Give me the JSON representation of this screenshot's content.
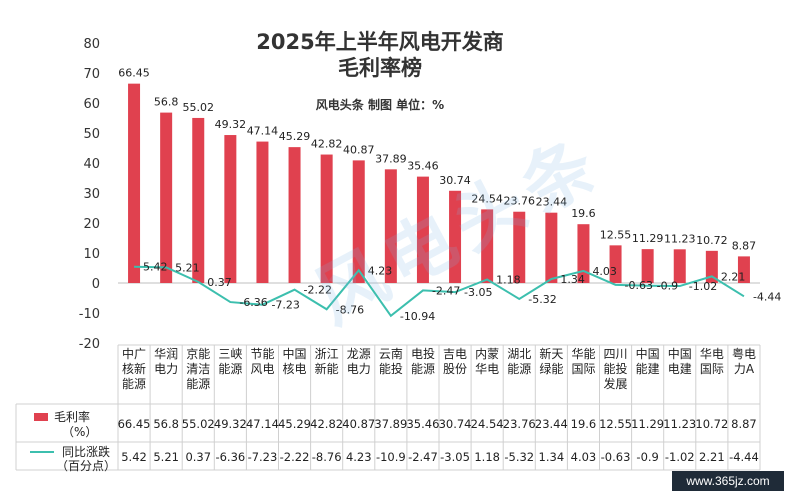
{
  "title_line1": "2025年上半年风电开发商",
  "title_line2": "毛利率榜",
  "subtitle": "风电头条 制图   单位：%",
  "watermark": "风电头条",
  "site": "www.365jz.com",
  "colors": {
    "bar": "#e0414f",
    "line": "#3cbfae"
  },
  "chart_data": {
    "type": "bar",
    "categories": [
      "中广\n核新\n能源",
      "华润\n电力",
      "京能\n清洁\n能源",
      "三峡\n能源",
      "节能\n风电",
      "中国\n核电",
      "浙江\n新能",
      "龙源\n电力",
      "云南\n能投",
      "电投\n能源",
      "吉电\n股份",
      "内蒙\n华电",
      "湖北\n能源",
      "新天\n绿能",
      "华能\n国际",
      "四川\n能投\n发展",
      "中国\n能建",
      "中国\n电建",
      "华电\n国际",
      "粤电\n力A"
    ],
    "series": [
      {
        "name": "毛利率\n（%）",
        "type": "bar",
        "values": [
          66.45,
          56.8,
          55.02,
          49.32,
          47.14,
          45.29,
          42.82,
          40.87,
          37.89,
          35.46,
          30.74,
          24.54,
          23.76,
          23.44,
          19.6,
          12.55,
          11.29,
          11.23,
          10.72,
          8.87
        ],
        "labels": [
          "66.45",
          "56.8",
          "55.02",
          "49.32",
          "47.14",
          "45.29",
          "42.82",
          "40.87",
          "37.89",
          "35.46",
          "30.74",
          "24.54",
          "23.76",
          "23.44",
          "19.6",
          "12.55",
          "11.29",
          "11.23",
          "10.72",
          "8.87"
        ]
      },
      {
        "name": "同比涨跌\n（百分点）",
        "type": "line",
        "values": [
          5.42,
          5.21,
          0.37,
          -6.36,
          -7.23,
          -2.22,
          -8.76,
          4.23,
          -10.94,
          -2.47,
          -3.05,
          1.18,
          -5.32,
          1.34,
          4.03,
          -0.63,
          -0.9,
          -1.02,
          2.21,
          -4.44
        ],
        "labels": [
          "5.42",
          "5.21",
          "0.37",
          "-6.36",
          "-7.23",
          "-2.22",
          "-8.76",
          "4.23",
          "-10.94",
          "-2.47",
          "-3.05",
          "1.18",
          "-5.32",
          "1.34",
          "4.03",
          "-0.63",
          "-0.9",
          "-1.02",
          "2.21",
          "-4.44"
        ],
        "table_labels": [
          "5.42",
          "5.21",
          "0.37",
          "-6.36",
          "-7.23",
          "-2.22",
          "-8.76",
          "4.23",
          "-10.9",
          "-2.47",
          "-3.05",
          "1.18",
          "-5.32",
          "1.34",
          "4.03",
          "-0.63",
          "-0.9",
          "-1.02",
          "2.21",
          "-4.44"
        ]
      }
    ],
    "yticks": [
      80,
      70,
      60,
      50,
      40,
      30,
      20,
      10,
      0,
      -10,
      -20
    ],
    "ylim": [
      -20,
      80
    ],
    "grid": false,
    "legend": "bottom-left data table"
  }
}
